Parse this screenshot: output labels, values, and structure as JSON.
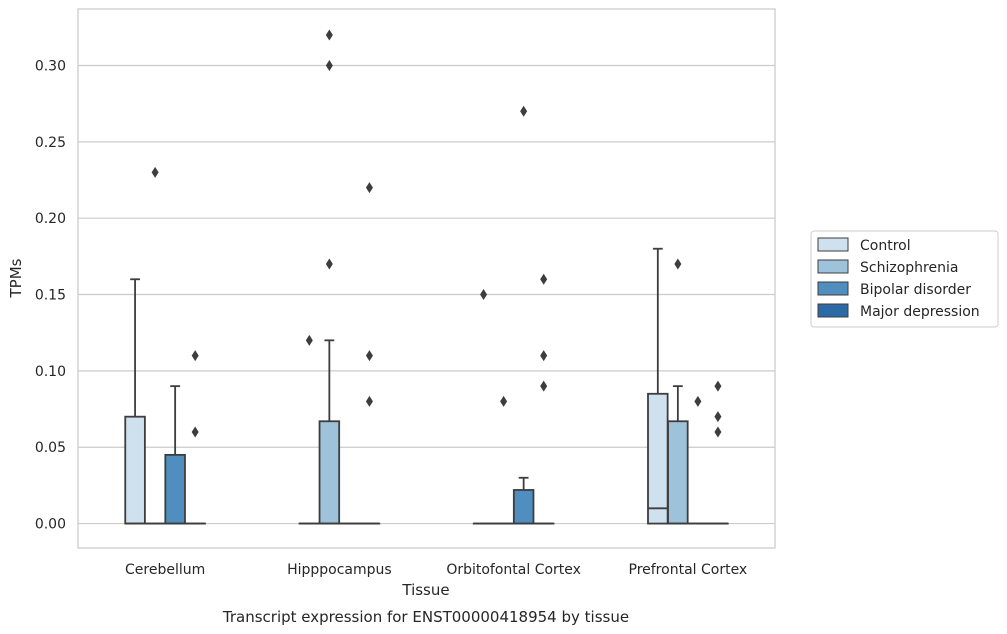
{
  "chart_data": {
    "type": "box",
    "caption": "Transcript expression for ENST00000418954 by tissue",
    "xlabel": "Tissue",
    "ylabel": "TPMs",
    "ylim": [
      -0.016,
      0.337
    ],
    "yticks": [
      0.0,
      0.05,
      0.1,
      0.15,
      0.2,
      0.25,
      0.3
    ],
    "ytick_labels": [
      "0.00",
      "0.05",
      "0.10",
      "0.15",
      "0.20",
      "0.25",
      "0.30"
    ],
    "grid": "horizontal",
    "legend_position": "right",
    "categories": [
      "Cerebellum",
      "Hipppocampus",
      "Orbitofontal Cortex",
      "Prefrontal Cortex"
    ],
    "series": [
      {
        "name": "Control",
        "color": "#cfe0ef",
        "boxes": [
          {
            "q1": 0.0,
            "median": 0.0,
            "q3": 0.07,
            "whisker_low": 0.0,
            "whisker_high": 0.16,
            "outliers": []
          },
          {
            "q1": 0.0,
            "median": 0.0,
            "q3": 0.0,
            "whisker_low": 0.0,
            "whisker_high": 0.0,
            "outliers": [
              0.12
            ]
          },
          {
            "q1": 0.0,
            "median": 0.0,
            "q3": 0.0,
            "whisker_low": 0.0,
            "whisker_high": 0.0,
            "outliers": [
              0.15
            ]
          },
          {
            "q1": 0.0,
            "median": 0.01,
            "q3": 0.085,
            "whisker_low": 0.0,
            "whisker_high": 0.18,
            "outliers": []
          }
        ]
      },
      {
        "name": "Schizophrenia",
        "color": "#9ec2da",
        "boxes": [
          {
            "q1": 0.0,
            "median": 0.0,
            "q3": 0.0,
            "whisker_low": 0.0,
            "whisker_high": 0.0,
            "outliers": [
              0.23
            ]
          },
          {
            "q1": 0.0,
            "median": 0.0,
            "q3": 0.067,
            "whisker_low": 0.0,
            "whisker_high": 0.12,
            "outliers": [
              0.17,
              0.3,
              0.32
            ]
          },
          {
            "q1": 0.0,
            "median": 0.0,
            "q3": 0.0,
            "whisker_low": 0.0,
            "whisker_high": 0.0,
            "outliers": [
              0.08
            ]
          },
          {
            "q1": 0.0,
            "median": 0.0,
            "q3": 0.067,
            "whisker_low": 0.0,
            "whisker_high": 0.09,
            "outliers": [
              0.17
            ]
          }
        ]
      },
      {
        "name": "Bipolar disorder",
        "color": "#4f8ebf",
        "boxes": [
          {
            "q1": 0.0,
            "median": 0.0,
            "q3": 0.045,
            "whisker_low": 0.0,
            "whisker_high": 0.09,
            "outliers": []
          },
          {
            "q1": 0.0,
            "median": 0.0,
            "q3": 0.0,
            "whisker_low": 0.0,
            "whisker_high": 0.0,
            "outliers": []
          },
          {
            "q1": 0.0,
            "median": 0.0,
            "q3": 0.022,
            "whisker_low": 0.0,
            "whisker_high": 0.03,
            "outliers": [
              0.27
            ]
          },
          {
            "q1": 0.0,
            "median": 0.0,
            "q3": 0.0,
            "whisker_low": 0.0,
            "whisker_high": 0.0,
            "outliers": [
              0.08
            ]
          }
        ]
      },
      {
        "name": "Major depression",
        "color": "#2b6aa6",
        "boxes": [
          {
            "q1": 0.0,
            "median": 0.0,
            "q3": 0.0,
            "whisker_low": 0.0,
            "whisker_high": 0.0,
            "outliers": [
              0.06,
              0.11
            ]
          },
          {
            "q1": 0.0,
            "median": 0.0,
            "q3": 0.0,
            "whisker_low": 0.0,
            "whisker_high": 0.0,
            "outliers": [
              0.08,
              0.11,
              0.22
            ]
          },
          {
            "q1": 0.0,
            "median": 0.0,
            "q3": 0.0,
            "whisker_low": 0.0,
            "whisker_high": 0.0,
            "outliers": [
              0.09,
              0.11,
              0.16
            ]
          },
          {
            "q1": 0.0,
            "median": 0.0,
            "q3": 0.0,
            "whisker_low": 0.0,
            "whisker_high": 0.0,
            "outliers": [
              0.06,
              0.07,
              0.09
            ]
          }
        ]
      }
    ]
  }
}
